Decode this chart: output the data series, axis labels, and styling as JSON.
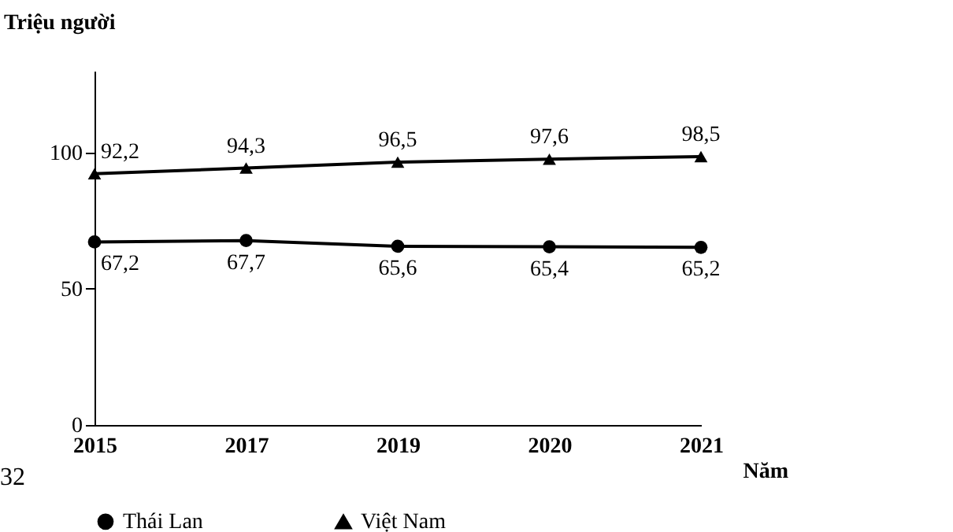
{
  "chart_data": {
    "type": "line",
    "ylabel": "Triệu người",
    "xlabel": "Năm",
    "categories": [
      "2015",
      "2017",
      "2019",
      "2020",
      "2021"
    ],
    "series": [
      {
        "name": "Thái Lan",
        "color": "#000000",
        "marker": "circle",
        "values": [
          67.2,
          67.7,
          65.6,
          65.4,
          65.2
        ],
        "value_labels": [
          "67,2",
          "67,7",
          "65,6",
          "65,4",
          "65,2"
        ]
      },
      {
        "name": "Việt Nam",
        "color": "#000000",
        "marker": "triangle",
        "values": [
          92.2,
          94.3,
          96.5,
          97.6,
          98.5
        ],
        "value_labels": [
          "92,2",
          "94,3",
          "96,5",
          "97,6",
          "98,5"
        ]
      }
    ],
    "ylim": [
      0,
      130
    ],
    "yticks": [
      0,
      50,
      100
    ],
    "grid": false,
    "legend": "bottom",
    "line_style": "solid",
    "annotations": [
      "32"
    ]
  }
}
